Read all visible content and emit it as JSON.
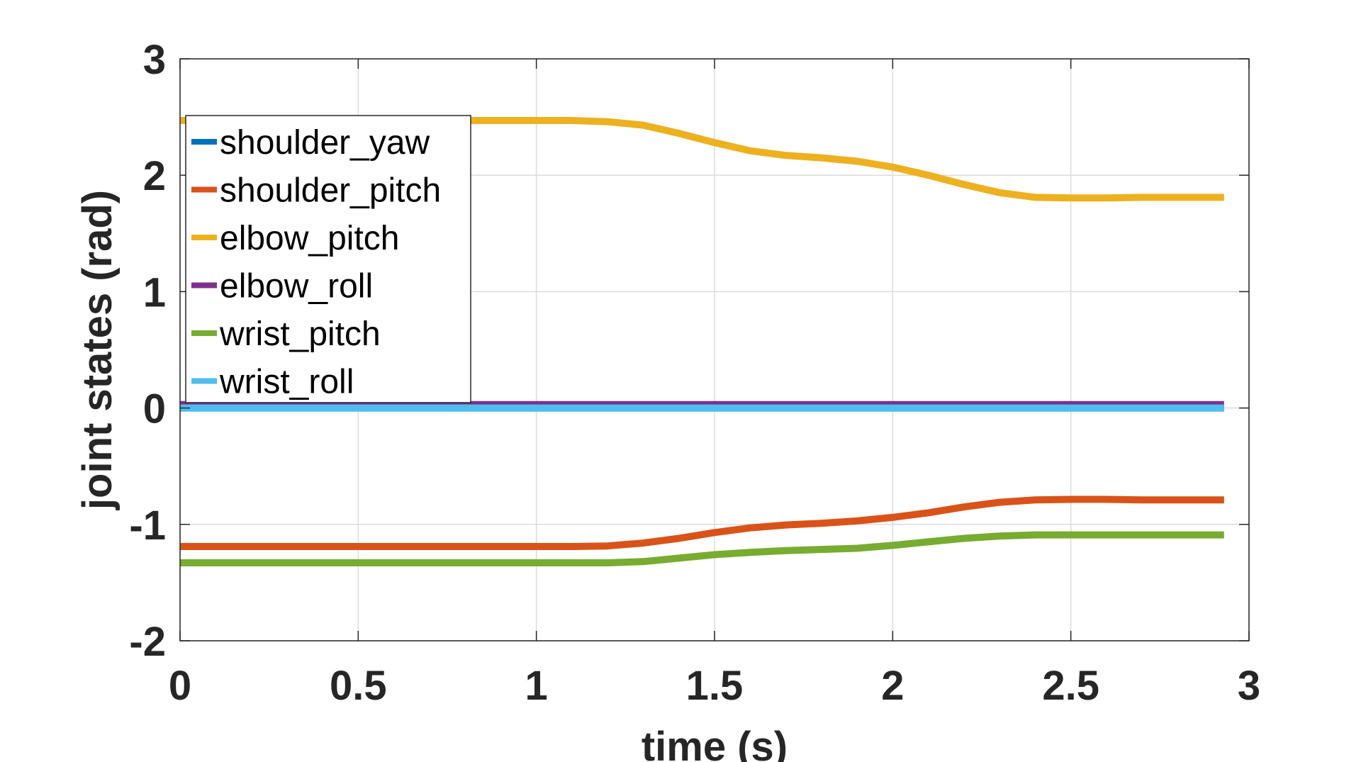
{
  "chart_data": {
    "type": "line",
    "title": "",
    "xlabel": "time (s)",
    "ylabel": "joint states (rad)",
    "xlim": [
      0,
      3
    ],
    "ylim": [
      -2,
      3
    ],
    "xticks": [
      0,
      0.5,
      1,
      1.5,
      2,
      2.5,
      3
    ],
    "xtick_labels": [
      "0",
      "0.5",
      "1",
      "1.5",
      "2",
      "2.5",
      "3"
    ],
    "yticks": [
      -2,
      -1,
      0,
      1,
      2,
      3
    ],
    "ytick_labels": [
      "-2",
      "-1",
      "0",
      "1",
      "2",
      "3"
    ],
    "grid": true,
    "legend_position": "top-left",
    "series": [
      {
        "name": "shoulder_yaw",
        "color": "#0072BD",
        "x": [
          0,
          2.93
        ],
        "y": [
          0.0,
          0.0
        ]
      },
      {
        "name": "shoulder_pitch",
        "color": "#D95319",
        "x": [
          0,
          0.3,
          0.6,
          0.9,
          1.1,
          1.2,
          1.3,
          1.4,
          1.5,
          1.6,
          1.7,
          1.8,
          1.9,
          2.0,
          2.1,
          2.2,
          2.3,
          2.4,
          2.5,
          2.6,
          2.7,
          2.8,
          2.93
        ],
        "y": [
          -1.19,
          -1.19,
          -1.19,
          -1.19,
          -1.19,
          -1.185,
          -1.16,
          -1.12,
          -1.07,
          -1.03,
          -1.005,
          -0.99,
          -0.97,
          -0.94,
          -0.9,
          -0.85,
          -0.81,
          -0.79,
          -0.785,
          -0.785,
          -0.79,
          -0.79,
          -0.79
        ]
      },
      {
        "name": "elbow_pitch",
        "color": "#EDB120",
        "x": [
          0,
          0.3,
          0.6,
          0.9,
          1.1,
          1.2,
          1.3,
          1.4,
          1.5,
          1.6,
          1.7,
          1.8,
          1.9,
          2.0,
          2.1,
          2.2,
          2.3,
          2.4,
          2.5,
          2.6,
          2.7,
          2.8,
          2.93
        ],
        "y": [
          2.47,
          2.47,
          2.47,
          2.47,
          2.47,
          2.46,
          2.43,
          2.36,
          2.28,
          2.21,
          2.17,
          2.15,
          2.12,
          2.07,
          2.0,
          1.92,
          1.85,
          1.81,
          1.805,
          1.805,
          1.81,
          1.81,
          1.81
        ]
      },
      {
        "name": "elbow_roll",
        "color": "#7E2F8E",
        "x": [
          0,
          2.93
        ],
        "y": [
          0.03,
          0.03
        ]
      },
      {
        "name": "wrist_pitch",
        "color": "#77AC30",
        "x": [
          0,
          0.3,
          0.6,
          0.9,
          1.1,
          1.2,
          1.3,
          1.4,
          1.5,
          1.6,
          1.7,
          1.8,
          1.9,
          2.0,
          2.1,
          2.2,
          2.3,
          2.4,
          2.5,
          2.6,
          2.7,
          2.8,
          2.93
        ],
        "y": [
          -1.33,
          -1.33,
          -1.33,
          -1.33,
          -1.33,
          -1.33,
          -1.32,
          -1.29,
          -1.26,
          -1.24,
          -1.225,
          -1.215,
          -1.205,
          -1.18,
          -1.15,
          -1.12,
          -1.1,
          -1.09,
          -1.09,
          -1.09,
          -1.09,
          -1.09,
          -1.09
        ]
      },
      {
        "name": "wrist_roll",
        "color": "#4DBEEE",
        "x": [
          0,
          2.93
        ],
        "y": [
          0.0,
          0.0
        ]
      }
    ]
  }
}
